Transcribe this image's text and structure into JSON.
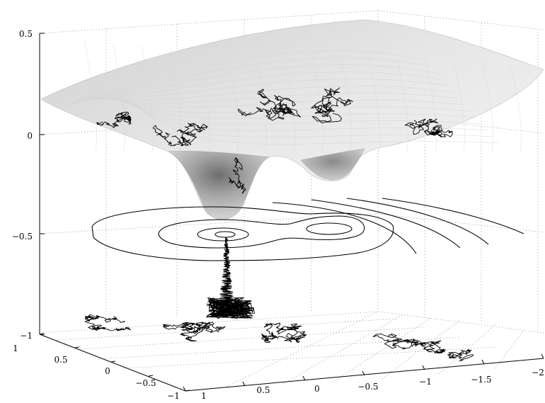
{
  "chart_data": {
    "type": "surface",
    "title": "",
    "xlabel": "",
    "ylabel": "",
    "zlabel": "",
    "grid": true,
    "surface": {
      "colormap": "gray",
      "wells": [
        {
          "x": 0.1,
          "y": -0.05,
          "z": -0.42
        },
        {
          "x": -0.9,
          "y": 0.1,
          "z": -0.2
        }
      ],
      "rim_z": 0.15
    },
    "contour_plane_z": -0.5,
    "floor_z": -1,
    "series": [
      {
        "kind": "random-walk-on-surface"
      },
      {
        "kind": "random-walk-vertical-projection"
      },
      {
        "kind": "random-walk-floor-projection"
      }
    ],
    "xlim": [
      -2,
      1
    ],
    "ylim": [
      -1,
      1
    ],
    "zlim": [
      -1,
      0.5
    ],
    "x_ticks": [
      "1",
      "0.5",
      "0",
      "−0.5",
      "−1",
      "−1.5",
      "−2"
    ],
    "y_ticks": [
      "1",
      "0.5",
      "0",
      "−0.5",
      "−1"
    ],
    "z_ticks": [
      "0.5",
      "0",
      "−0.5",
      "−1"
    ]
  }
}
